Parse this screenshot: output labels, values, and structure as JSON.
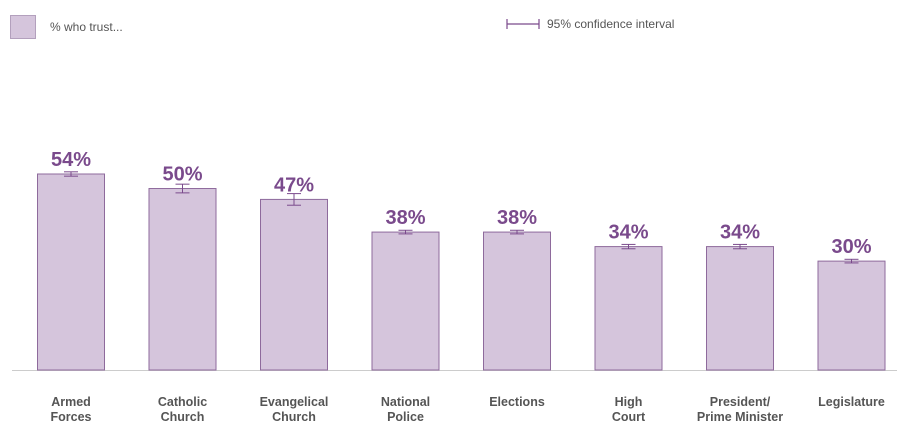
{
  "legend": {
    "series_label": "% who trust...",
    "ci_label": "95% confidence interval"
  },
  "colors": {
    "bar_fill": "#d5c5dc",
    "bar_stroke": "#8e6a9c",
    "value_label": "#7a4a8c",
    "ci": "#7a4a8c",
    "axis": "#cccccc"
  },
  "chart_data": {
    "type": "bar",
    "title": "",
    "xlabel": "",
    "ylabel": "",
    "ylim": [
      0,
      60
    ],
    "categories": [
      [
        "Armed",
        "Forces"
      ],
      [
        "Catholic",
        "Church"
      ],
      [
        "Evangelical",
        "Church"
      ],
      [
        "National",
        "Police"
      ],
      [
        "Elections"
      ],
      [
        "High",
        "Court"
      ],
      [
        "President/",
        "Prime Minister"
      ],
      [
        "Legislature"
      ]
    ],
    "series": [
      {
        "name": "% who trust...",
        "values": [
          54,
          50,
          47,
          38,
          38,
          34,
          34,
          30
        ],
        "value_labels": [
          "54%",
          "50%",
          "47%",
          "38%",
          "38%",
          "34%",
          "34%",
          "30%"
        ],
        "ci_halfwidth": [
          0.6,
          1.2,
          1.6,
          0.5,
          0.5,
          0.6,
          0.6,
          0.5
        ]
      }
    ]
  }
}
